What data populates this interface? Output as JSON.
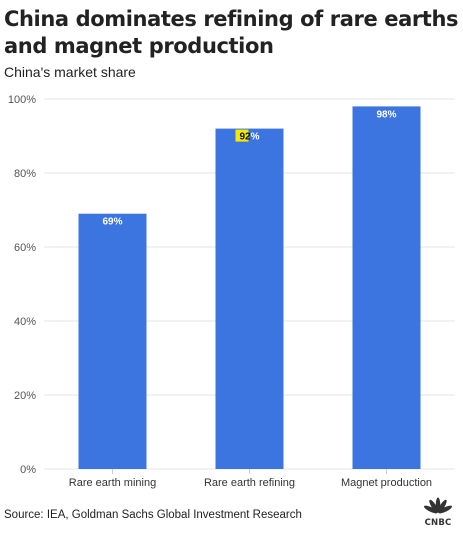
{
  "title": "China dominates refining of rare earths and magnet production",
  "subtitle": "China's market share",
  "source": "Source: IEA, Goldman Sachs Global Investment Research",
  "logo_text": "CNBC",
  "colors": {
    "bar": "#3c74e0",
    "highlight": "#f2ea00",
    "grid": "#e5e5e5",
    "axis_text": "#555555"
  },
  "chart_data": {
    "type": "bar",
    "title": "China dominates refining of rare earths and magnet production",
    "subtitle": "China's market share",
    "categories": [
      "Rare earth mining",
      "Rare earth refining",
      "Magnet production"
    ],
    "values": [
      69,
      92,
      98
    ],
    "value_labels": [
      "69%",
      "92%",
      "98%"
    ],
    "yticks": [
      "0%",
      "20%",
      "40%",
      "60%",
      "80%",
      "100%"
    ],
    "ylim": [
      0,
      100
    ],
    "grid": true,
    "legend": "none"
  }
}
